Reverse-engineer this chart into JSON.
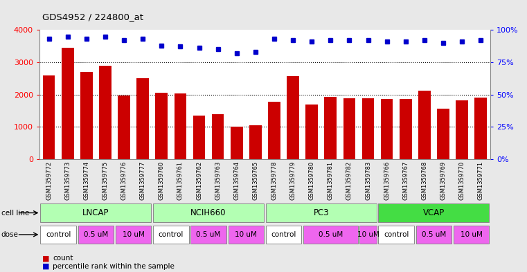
{
  "title": "GDS4952 / 224800_at",
  "samples": [
    "GSM1359772",
    "GSM1359773",
    "GSM1359774",
    "GSM1359775",
    "GSM1359776",
    "GSM1359777",
    "GSM1359760",
    "GSM1359761",
    "GSM1359762",
    "GSM1359763",
    "GSM1359764",
    "GSM1359765",
    "GSM1359778",
    "GSM1359779",
    "GSM1359780",
    "GSM1359781",
    "GSM1359782",
    "GSM1359783",
    "GSM1359766",
    "GSM1359767",
    "GSM1359768",
    "GSM1359769",
    "GSM1359770",
    "GSM1359771"
  ],
  "bar_values": [
    2600,
    3450,
    2700,
    2880,
    1960,
    2500,
    2050,
    2030,
    1340,
    1400,
    1000,
    1040,
    1780,
    2560,
    1700,
    1930,
    1890,
    1890,
    1870,
    1860,
    2130,
    1570,
    1830,
    1900
  ],
  "percentile_values": [
    93,
    95,
    93,
    95,
    92,
    93,
    88,
    87,
    86,
    85,
    82,
    83,
    93,
    92,
    91,
    92,
    92,
    92,
    91,
    91,
    92,
    90,
    91,
    92
  ],
  "bar_color": "#cc0000",
  "dot_color": "#0000cc",
  "ylim_left": [
    0,
    4000
  ],
  "ylim_right": [
    0,
    100
  ],
  "yticks_left": [
    0,
    1000,
    2000,
    3000,
    4000
  ],
  "yticks_right": [
    0,
    25,
    50,
    75,
    100
  ],
  "cell_lines": [
    {
      "name": "LNCAP",
      "start": 0,
      "end": 6,
      "color": "#b3ffb3"
    },
    {
      "name": "NCIH660",
      "start": 6,
      "end": 12,
      "color": "#b3ffb3"
    },
    {
      "name": "PC3",
      "start": 12,
      "end": 18,
      "color": "#b3ffb3"
    },
    {
      "name": "VCAP",
      "start": 18,
      "end": 24,
      "color": "#44dd44"
    }
  ],
  "dose_groups": [
    {
      "label": "control",
      "start": 0,
      "end": 2,
      "color": "#ffffff"
    },
    {
      "label": "0.5 uM",
      "start": 2,
      "end": 4,
      "color": "#ee66ee"
    },
    {
      "label": "10 uM",
      "start": 4,
      "end": 6,
      "color": "#ee66ee"
    },
    {
      "label": "control",
      "start": 6,
      "end": 8,
      "color": "#ffffff"
    },
    {
      "label": "0.5 uM",
      "start": 8,
      "end": 10,
      "color": "#ee66ee"
    },
    {
      "label": "10 uM",
      "start": 10,
      "end": 12,
      "color": "#ee66ee"
    },
    {
      "label": "control",
      "start": 12,
      "end": 14,
      "color": "#ffffff"
    },
    {
      "label": "0.5 uM",
      "start": 14,
      "end": 17,
      "color": "#ee66ee"
    },
    {
      "label": "10 uM",
      "start": 17,
      "end": 18,
      "color": "#ee66ee"
    },
    {
      "label": "control",
      "start": 18,
      "end": 20,
      "color": "#ffffff"
    },
    {
      "label": "0.5 uM",
      "start": 20,
      "end": 22,
      "color": "#ee66ee"
    },
    {
      "label": "10 uM",
      "start": 22,
      "end": 24,
      "color": "#ee66ee"
    }
  ],
  "background_color": "#e8e8e8",
  "plot_bg": "#ffffff",
  "grid_color": "#000000",
  "legend_count_color": "#cc0000",
  "legend_dot_color": "#0000cc",
  "tick_label_bg": "#cccccc"
}
